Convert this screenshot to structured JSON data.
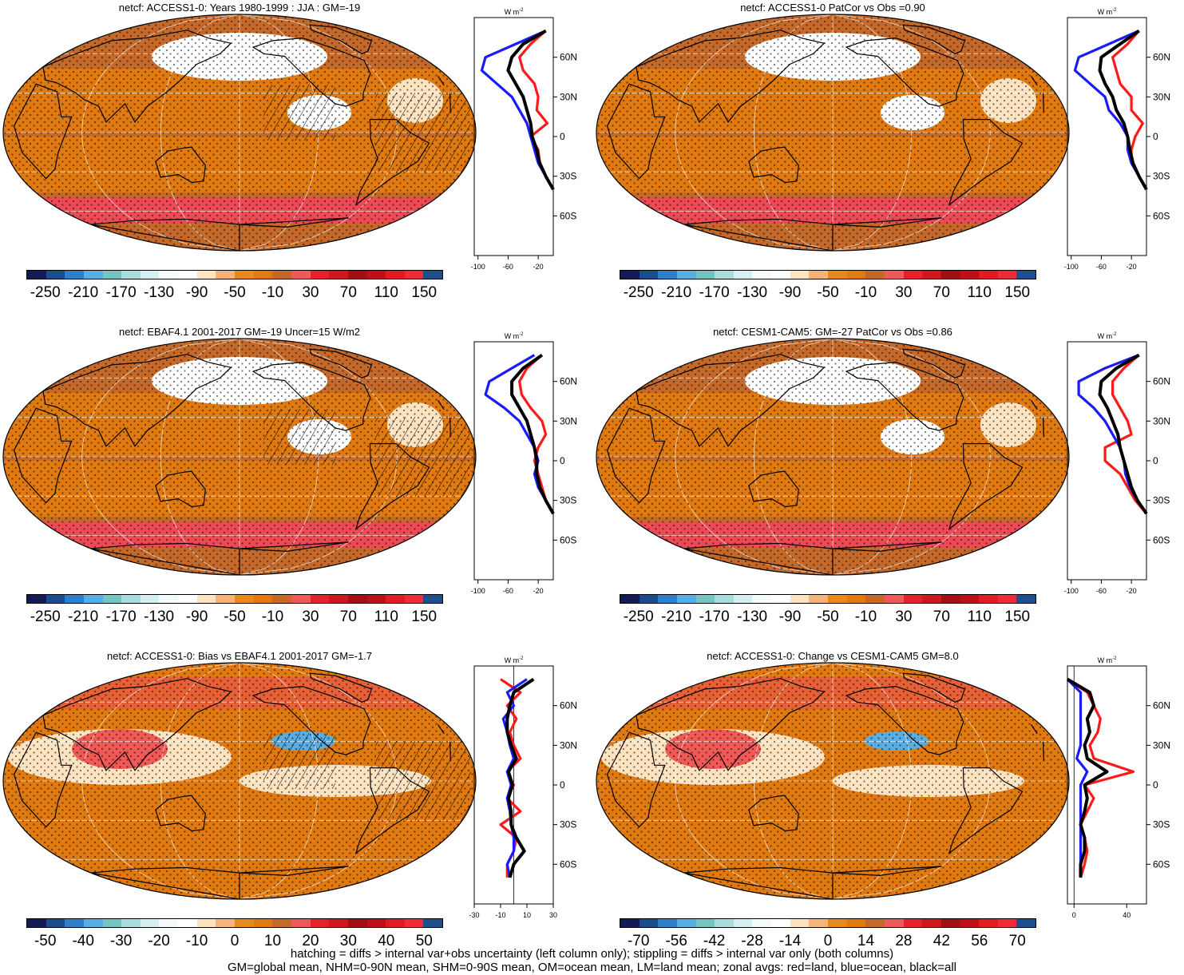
{
  "colorbar_colors": [
    "#131a55",
    "#1a4d8c",
    "#2f7fc8",
    "#58aee3",
    "#75c3c3",
    "#a9dcdc",
    "#d5f0f1",
    "#f5fbfd",
    "#ffffff",
    "#fde3c0",
    "#f6b47a",
    "#e8891e",
    "#e07a10",
    "#c4692a",
    "#ee5a5a",
    "#e8202a",
    "#d0181c",
    "#a30f15",
    "#c10e18",
    "#e31a22",
    "#f02a36",
    "#1d4f8c"
  ],
  "profile": {
    "units": "W m",
    "units_sup": "-2",
    "lat_labels": [
      "60N",
      "30N",
      "0",
      "30S",
      "60S"
    ],
    "lat_values": [
      60,
      30,
      0,
      -30,
      -60
    ],
    "colors": {
      "land": "#ff1a1a",
      "ocean": "#1a1aff",
      "all": "#000000"
    }
  },
  "panels": [
    {
      "title": "netcf: ACCESS1-0: Years 1980-1999 : JJA : GM=-19",
      "cbar_labels": [
        "-250",
        "-210",
        "-170",
        "-130",
        "-90",
        "-50",
        "-10",
        "30",
        "70",
        "110",
        "150"
      ],
      "profile_ticks": [
        "-100",
        "-60",
        "-20"
      ],
      "xlim": [
        -105,
        0
      ],
      "bias": false,
      "hatched": true,
      "chart_data": {
        "type": "line",
        "x_label": "W m-2",
        "y_label": "latitude",
        "series": [
          {
            "name": "land",
            "lat": [
              80,
              70,
              60,
              50,
              40,
              30,
              20,
              10,
              0,
              -10,
              -20,
              -30,
              -40
            ],
            "values": [
              -10,
              -30,
              -45,
              -40,
              -25,
              -20,
              -22,
              -8,
              -30,
              -20,
              -18,
              -10,
              0
            ]
          },
          {
            "name": "ocean",
            "lat": [
              80,
              70,
              60,
              50,
              40,
              30,
              20,
              10,
              0,
              -10,
              -20,
              -30,
              -40
            ],
            "values": [
              -10,
              -50,
              -90,
              -95,
              -75,
              -55,
              -45,
              -35,
              -30,
              -25,
              -20,
              -10,
              0
            ]
          },
          {
            "name": "all",
            "lat": [
              80,
              70,
              60,
              50,
              40,
              30,
              20,
              10,
              0,
              -10,
              -20,
              -30,
              -40
            ],
            "values": [
              -10,
              -40,
              -55,
              -60,
              -50,
              -40,
              -35,
              -30,
              -28,
              -22,
              -18,
              -10,
              0
            ]
          }
        ]
      }
    },
    {
      "title": "netcf: ACCESS1-0 PatCor vs Obs =0.90",
      "cbar_labels": [
        "-250",
        "-210",
        "-170",
        "-130",
        "-90",
        "-50",
        "-10",
        "30",
        "70",
        "110",
        "150"
      ],
      "profile_ticks": [
        "-100",
        "-60",
        "-20"
      ],
      "xlim": [
        -105,
        0
      ],
      "bias": false,
      "hatched": false,
      "chart_data": {
        "type": "line",
        "x_label": "W m-2",
        "y_label": "latitude",
        "series": [
          {
            "name": "land",
            "lat": [
              80,
              70,
              60,
              50,
              40,
              30,
              20,
              10,
              0,
              -10,
              -20,
              -30,
              -40
            ],
            "values": [
              -10,
              -25,
              -45,
              -40,
              -35,
              -20,
              -20,
              -5,
              -15,
              -20,
              -20,
              -10,
              0
            ]
          },
          {
            "name": "ocean",
            "lat": [
              80,
              70,
              60,
              50,
              40,
              30,
              20,
              10,
              0,
              -10,
              -20,
              -30,
              -40
            ],
            "values": [
              -10,
              -50,
              -90,
              -95,
              -75,
              -55,
              -50,
              -35,
              -25,
              -25,
              -20,
              -10,
              0
            ]
          },
          {
            "name": "all",
            "lat": [
              80,
              70,
              60,
              50,
              40,
              30,
              20,
              10,
              0,
              -10,
              -20,
              -30,
              -40
            ],
            "values": [
              -10,
              -35,
              -60,
              -62,
              -55,
              -45,
              -40,
              -30,
              -25,
              -22,
              -18,
              -10,
              0
            ]
          }
        ]
      }
    },
    {
      "title": "netcf: EBAF4.1 2001-2017 GM=-19 Uncer=15 W/m2",
      "cbar_labels": [
        "-250",
        "-210",
        "-170",
        "-130",
        "-90",
        "-50",
        "-10",
        "30",
        "70",
        "110",
        "150"
      ],
      "profile_ticks": [
        "-100",
        "-60",
        "-20"
      ],
      "xlim": [
        -105,
        0
      ],
      "bias": false,
      "hatched": true,
      "chart_data": {
        "type": "line",
        "x_label": "W m-2",
        "y_label": "latitude",
        "series": [
          {
            "name": "land",
            "lat": [
              80,
              70,
              60,
              50,
              40,
              30,
              20,
              10,
              0,
              -10,
              -20,
              -30,
              -40
            ],
            "values": [
              -15,
              -35,
              -45,
              -42,
              -30,
              -15,
              -10,
              -20,
              -25,
              -20,
              -15,
              -10,
              0
            ]
          },
          {
            "name": "ocean",
            "lat": [
              80,
              70,
              60,
              50,
              40,
              30,
              20,
              10,
              0,
              -10,
              -20,
              -30,
              -40
            ],
            "values": [
              -25,
              -55,
              -85,
              -90,
              -65,
              -45,
              -35,
              -25,
              -20,
              -25,
              -20,
              -10,
              0
            ]
          },
          {
            "name": "all",
            "lat": [
              80,
              70,
              60,
              50,
              40,
              30,
              20,
              10,
              0,
              -10,
              -20,
              -30,
              -40
            ],
            "values": [
              -15,
              -40,
              -55,
              -55,
              -45,
              -35,
              -30,
              -25,
              -22,
              -22,
              -18,
              -10,
              0
            ]
          }
        ]
      }
    },
    {
      "title": "netcf: CESM1-CAM5: GM=-27 PatCor vs Obs =0.86",
      "cbar_labels": [
        "-250",
        "-210",
        "-170",
        "-130",
        "-90",
        "-50",
        "-10",
        "30",
        "70",
        "110",
        "150"
      ],
      "profile_ticks": [
        "-100",
        "-60",
        "-20"
      ],
      "xlim": [
        -105,
        0
      ],
      "bias": false,
      "hatched": false,
      "chart_data": {
        "type": "line",
        "x_label": "W m-2",
        "y_label": "latitude",
        "series": [
          {
            "name": "land",
            "lat": [
              80,
              70,
              60,
              50,
              40,
              30,
              20,
              10,
              0,
              -10,
              -20,
              -30,
              -40
            ],
            "values": [
              -10,
              -30,
              -45,
              -45,
              -35,
              -25,
              -20,
              -55,
              -55,
              -35,
              -25,
              -15,
              0
            ]
          },
          {
            "name": "ocean",
            "lat": [
              80,
              70,
              60,
              50,
              40,
              30,
              20,
              10,
              0,
              -10,
              -20,
              -30,
              -40
            ],
            "values": [
              -10,
              -55,
              -90,
              -90,
              -70,
              -55,
              -45,
              -35,
              -30,
              -28,
              -22,
              -12,
              0
            ]
          },
          {
            "name": "all",
            "lat": [
              80,
              70,
              60,
              50,
              40,
              30,
              20,
              10,
              0,
              -10,
              -20,
              -30,
              -40
            ],
            "values": [
              -10,
              -40,
              -60,
              -62,
              -52,
              -45,
              -38,
              -35,
              -30,
              -25,
              -20,
              -12,
              0
            ]
          }
        ]
      }
    },
    {
      "title": "netcf: ACCESS1-0: Bias vs EBAF4.1 2001-2017 GM=-1.7",
      "cbar_labels": [
        "-50",
        "-40",
        "-30",
        "-20",
        "-10",
        "0",
        "10",
        "20",
        "30",
        "40",
        "50"
      ],
      "profile_ticks": [
        "-30",
        "-10",
        "10",
        "30"
      ],
      "xlim": [
        -30,
        30
      ],
      "bias": true,
      "hatched": true,
      "chart_data": {
        "type": "line",
        "x_label": "W m-2",
        "y_label": "latitude",
        "series": [
          {
            "name": "land",
            "lat": [
              80,
              70,
              60,
              50,
              40,
              30,
              20,
              10,
              0,
              -10,
              -20,
              -30,
              -40,
              -50,
              -60,
              -70
            ],
            "values": [
              -10,
              5,
              -5,
              2,
              -3,
              0,
              5,
              -5,
              0,
              -5,
              5,
              -10,
              2,
              0,
              -5,
              -5
            ]
          },
          {
            "name": "ocean",
            "lat": [
              80,
              70,
              60,
              50,
              40,
              30,
              20,
              10,
              0,
              -10,
              -20,
              -30,
              -40,
              -50,
              -60,
              -70
            ],
            "values": [
              10,
              -5,
              0,
              -8,
              -5,
              -3,
              0,
              -5,
              -2,
              -5,
              -3,
              -2,
              0,
              0,
              -5,
              -3
            ]
          },
          {
            "name": "all",
            "lat": [
              80,
              70,
              60,
              50,
              40,
              30,
              20,
              10,
              0,
              -10,
              -20,
              -30,
              -40,
              -50,
              -60,
              -70
            ],
            "values": [
              15,
              0,
              -3,
              -5,
              -5,
              -2,
              2,
              -4,
              -1,
              -4,
              -2,
              -2,
              2,
              8,
              0,
              -3
            ]
          }
        ]
      }
    },
    {
      "title": "netcf: ACCESS1-0: Change vs CESM1-CAM5 GM=8.0",
      "cbar_labels": [
        "-70",
        "-56",
        "-42",
        "-28",
        "-14",
        "0",
        "14",
        "28",
        "42",
        "56",
        "70"
      ],
      "profile_ticks": [
        "0",
        "40"
      ],
      "xlim": [
        -5,
        55
      ],
      "bias": true,
      "hatched": false,
      "chart_data": {
        "type": "line",
        "x_label": "W m-2",
        "y_label": "latitude",
        "series": [
          {
            "name": "land",
            "lat": [
              80,
              70,
              60,
              50,
              40,
              30,
              20,
              10,
              0,
              -10,
              -20,
              -30,
              -40,
              -50,
              -60,
              -70
            ],
            "values": [
              -5,
              10,
              15,
              20,
              18,
              12,
              15,
              45,
              8,
              15,
              10,
              5,
              8,
              10,
              8,
              5
            ]
          },
          {
            "name": "ocean",
            "lat": [
              80,
              70,
              60,
              50,
              40,
              30,
              20,
              10,
              0,
              -10,
              -20,
              -30,
              -40,
              -50,
              -60,
              -70
            ],
            "values": [
              -5,
              5,
              5,
              5,
              5,
              5,
              2,
              10,
              5,
              5,
              5,
              5,
              5,
              5,
              5,
              5
            ]
          },
          {
            "name": "all",
            "lat": [
              80,
              70,
              60,
              50,
              40,
              30,
              20,
              10,
              0,
              -10,
              -20,
              -30,
              -40,
              -50,
              -60,
              -70
            ],
            "values": [
              -5,
              12,
              15,
              10,
              12,
              8,
              10,
              25,
              8,
              10,
              8,
              5,
              8,
              8,
              5,
              5
            ]
          }
        ]
      }
    }
  ],
  "footnotes": [
    "hatching = diffs > internal var+obs uncertainty (left column only); stippling = diffs > internal var only (both columns)",
    "GM=global mean, NHM=0-90N mean, SHM=0-90S mean, OM=ocean mean, LM=land mean; zonal avgs: red=land, blue=ocean, black=all"
  ]
}
